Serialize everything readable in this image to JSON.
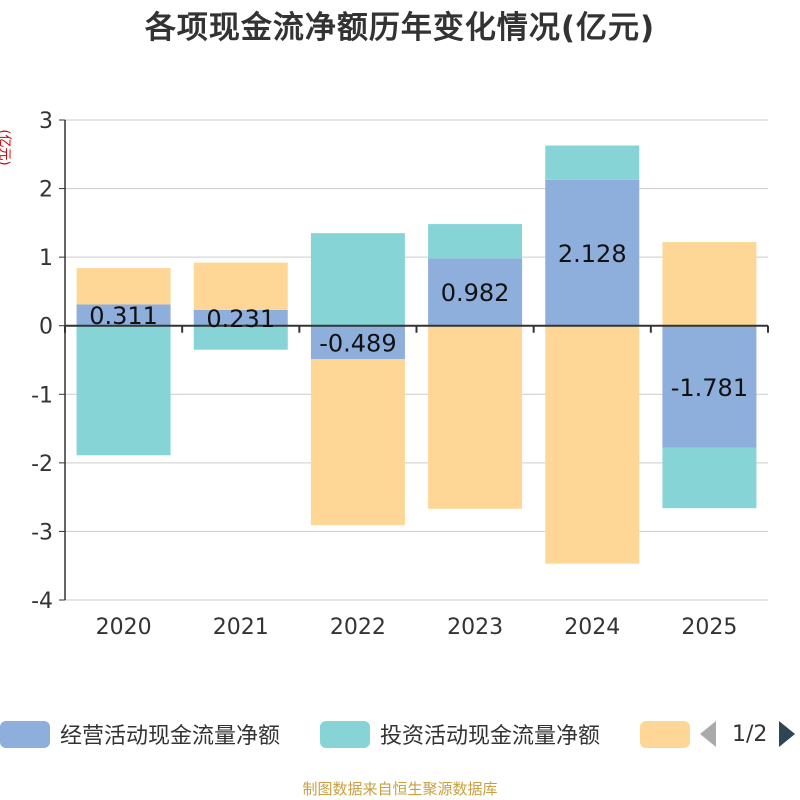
{
  "title": "各项现金流净额历年变化情况(亿元)",
  "y_unit": "(亿元)",
  "chart_data": {
    "type": "bar",
    "stacked": true,
    "title": "各项现金流净额历年变化情况(亿元)",
    "ylabel": "(亿元)",
    "categories": [
      "2020",
      "2021",
      "2022",
      "2023",
      "2024",
      "2025"
    ],
    "ylim": [
      -4,
      3
    ],
    "yticks": [
      3,
      2,
      1,
      0,
      -1,
      -2,
      -3,
      -4
    ],
    "grid": true,
    "series": [
      {
        "name": "经营活动现金流量净额",
        "color": "#8eaedb",
        "values": [
          0.311,
          0.231,
          -0.489,
          0.982,
          2.128,
          -1.781
        ],
        "labeled": true
      },
      {
        "name": "投资活动现金流量净额",
        "color": "#87d4d7",
        "values": [
          -1.89,
          -0.35,
          1.35,
          0.5,
          0.5,
          -0.88
        ],
        "labeled": false
      },
      {
        "name": "",
        "color": "#fed797",
        "values": [
          0.53,
          0.69,
          -2.42,
          -2.67,
          -3.47,
          1.22
        ],
        "labeled": false
      }
    ]
  },
  "legend": {
    "items": [
      {
        "label": "经营活动现金流量净额",
        "color": "#8eaedb"
      },
      {
        "label": "投资活动现金流量净额",
        "color": "#87d4d7"
      },
      {
        "label": "",
        "color": "#fed797"
      }
    ],
    "page": "1/2"
  },
  "footer": "制图数据来自恒生聚源数据库"
}
